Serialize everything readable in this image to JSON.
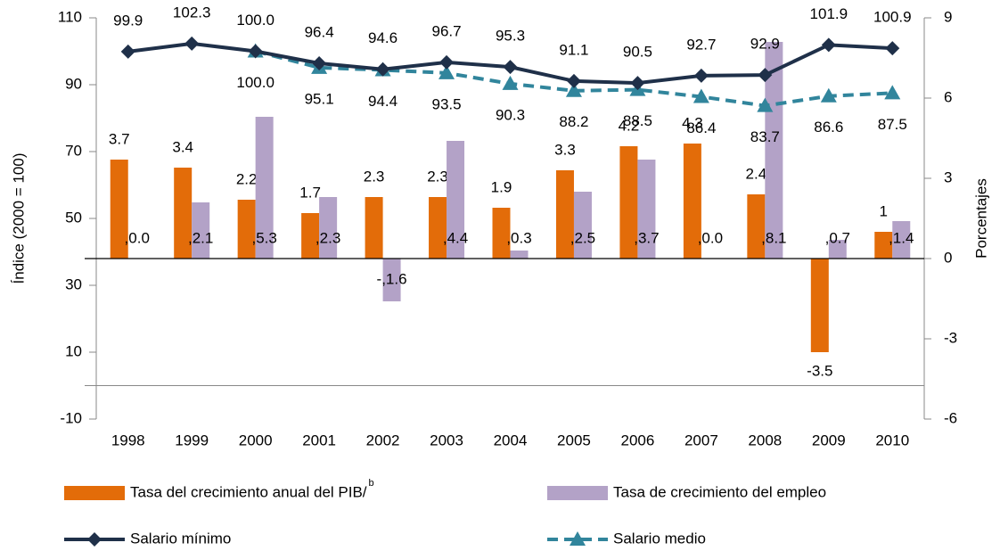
{
  "chart_data": {
    "type": "bar-line",
    "ylabel": "Índice (2000 = 100)",
    "y2label": "Porcentajes",
    "categories": [
      "1998",
      "1999",
      "2000",
      "2001",
      "2002",
      "2003",
      "2004",
      "2005",
      "2006",
      "2007",
      "2008",
      "2009",
      "2010"
    ],
    "ylim": [
      -10,
      110
    ],
    "yticks": [
      110,
      90,
      70,
      50,
      30,
      10,
      -10
    ],
    "y2lim": [
      -6,
      9
    ],
    "y2ticks": [
      9,
      6,
      3,
      0,
      -3,
      -6
    ],
    "grid": false,
    "series": [
      {
        "name": "Tasa del crecimiento anual del PIB/",
        "footnote_mark": "b",
        "type": "bar",
        "axis": "y2",
        "color": "#e36c09",
        "values": [
          3.7,
          3.4,
          2.2,
          1.7,
          2.3,
          2.3,
          1.9,
          3.3,
          4.2,
          4.3,
          2.4,
          -3.5,
          1.0
        ]
      },
      {
        "name": "Tasa de crecimiento del empleo",
        "type": "bar",
        "axis": "y2",
        "color": "#b3a2c7",
        "values": [
          0.0,
          2.1,
          5.3,
          2.3,
          -1.6,
          4.4,
          0.3,
          2.5,
          3.7,
          0.0,
          8.1,
          0.7,
          1.4
        ],
        "value_labels": [
          ",0.0",
          ",2.1",
          ",5.3",
          ",2.3",
          "-,1.6",
          ",4.4",
          ",0.3",
          ",2.5",
          ",3.7",
          ",0.0",
          ",8.1",
          ",0.7",
          ",1.4"
        ]
      },
      {
        "name": "Salario mínimo",
        "type": "line",
        "marker": "diamond",
        "dashed": false,
        "color": "#1f3049",
        "values": [
          99.9,
          102.3,
          100.0,
          96.4,
          94.6,
          96.7,
          95.3,
          91.1,
          90.5,
          92.7,
          92.9,
          101.9,
          100.9
        ],
        "value_labels": [
          "99.9",
          "102.3",
          "100.0",
          "96.4",
          "94.6",
          "96.7",
          "95.3",
          "91.1",
          "90.5",
          "92.7",
          "92.9",
          "101.9",
          "100.9"
        ]
      },
      {
        "name": "Salario medio",
        "type": "line",
        "marker": "triangle",
        "dashed": true,
        "color": "#31859c",
        "values": [
          null,
          null,
          100.0,
          95.1,
          94.4,
          93.5,
          90.3,
          88.2,
          88.5,
          86.4,
          83.7,
          86.6,
          87.5
        ],
        "value_labels": [
          null,
          null,
          "100.0",
          "95.1",
          "94.4",
          "93.5",
          "90.3",
          "88.2",
          "88.5",
          "86.4",
          "83.7",
          "86.6",
          "87.5"
        ]
      }
    ]
  }
}
